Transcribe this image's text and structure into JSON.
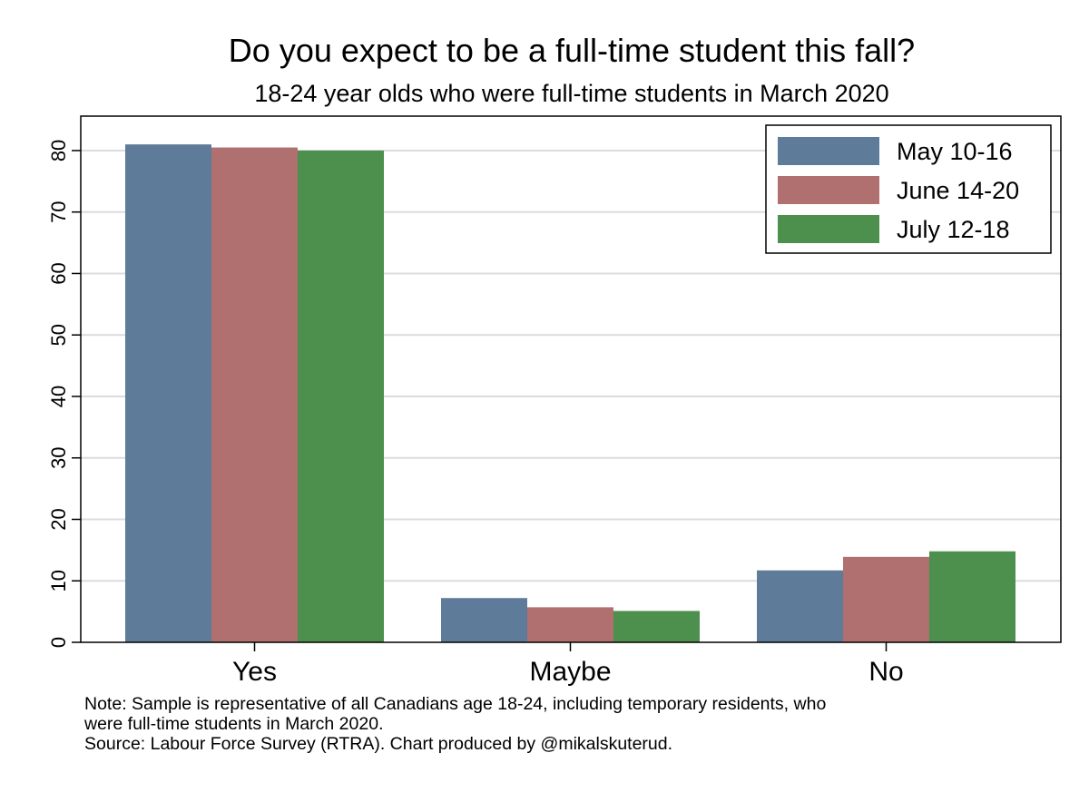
{
  "chart_data": {
    "type": "bar",
    "title": "Do you expect to be a full-time student this fall?",
    "subtitle": "18-24 year olds who were full-time students in March 2020",
    "categories": [
      "Yes",
      "Maybe",
      "No"
    ],
    "series": [
      {
        "name": "May 10-16",
        "color": "#5e7c99",
        "values": [
          81.0,
          7.2,
          11.7
        ]
      },
      {
        "name": "June 14-20",
        "color": "#b07070",
        "values": [
          80.5,
          5.7,
          13.9
        ]
      },
      {
        "name": "July 12-18",
        "color": "#4d8f4d",
        "values": [
          80.0,
          5.1,
          14.8
        ]
      }
    ],
    "ylim": [
      0,
      85.6
    ],
    "yticks": [
      "0",
      "10",
      "20",
      "30",
      "40",
      "50",
      "60",
      "70",
      "80"
    ],
    "grid": true,
    "legend_position": "top-right"
  },
  "notes": {
    "line1": "Note: Sample is representative of all Canadians age 18-24, including temporary residents, who",
    "line2": "were full-time students in March 2020.",
    "line3": "Source: Labour Force Survey (RTRA). Chart produced by @mikalskuterud."
  }
}
